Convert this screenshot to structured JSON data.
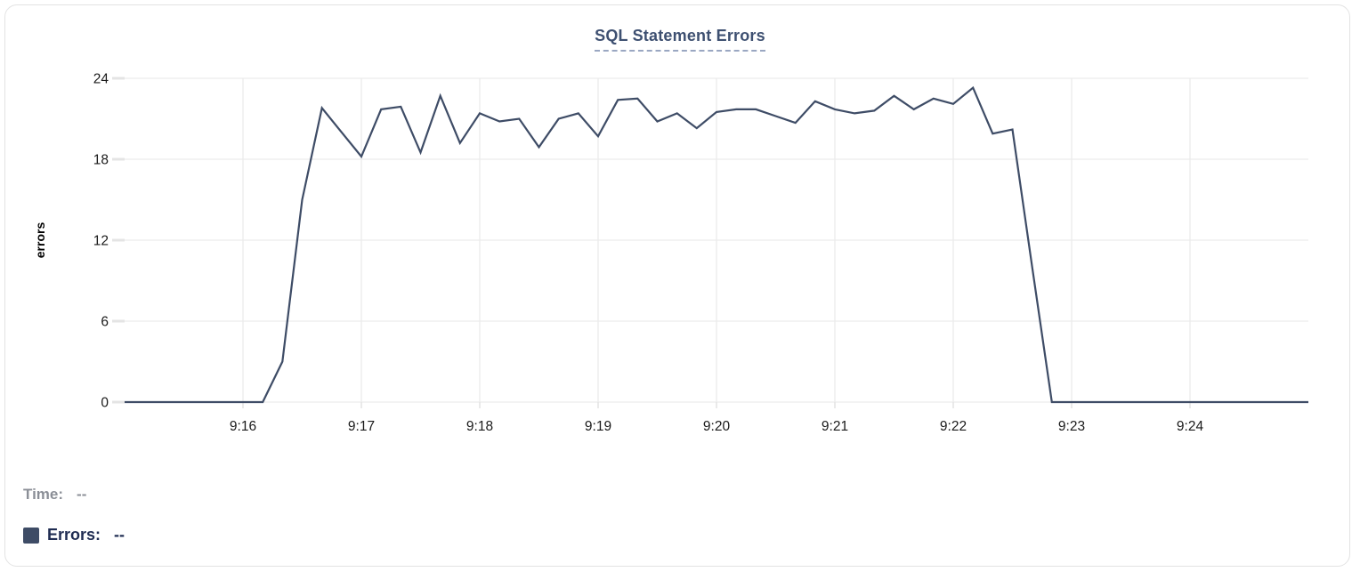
{
  "title_tooltip_style": "dashed-underline",
  "chart_data": {
    "type": "line",
    "title": "SQL Statement Errors",
    "xlabel": "",
    "ylabel": "errors",
    "ylim": [
      0,
      24
    ],
    "y_ticks": [
      0,
      6,
      12,
      18,
      24
    ],
    "x_tick_labels": [
      "9:16",
      "9:17",
      "9:18",
      "9:19",
      "9:20",
      "9:21",
      "9:22",
      "9:23",
      "9:24"
    ],
    "x_range": [
      "9:15:00",
      "9:25:00"
    ],
    "grid": true,
    "legend_position": "bottom-left",
    "series": [
      {
        "name": "Errors",
        "color": "#3e4c66",
        "interval_seconds": 10,
        "times": [
          "9:15:00",
          "9:15:10",
          "9:15:20",
          "9:15:30",
          "9:15:40",
          "9:15:50",
          "9:16:00",
          "9:16:10",
          "9:16:20",
          "9:16:30",
          "9:16:40",
          "9:16:50",
          "9:17:00",
          "9:17:10",
          "9:17:20",
          "9:17:30",
          "9:17:40",
          "9:17:50",
          "9:18:00",
          "9:18:10",
          "9:18:20",
          "9:18:30",
          "9:18:40",
          "9:18:50",
          "9:19:00",
          "9:19:10",
          "9:19:20",
          "9:19:30",
          "9:19:40",
          "9:19:50",
          "9:20:00",
          "9:20:10",
          "9:20:20",
          "9:20:30",
          "9:20:40",
          "9:20:50",
          "9:21:00",
          "9:21:10",
          "9:21:20",
          "9:21:30",
          "9:21:40",
          "9:21:50",
          "9:22:00",
          "9:22:10",
          "9:22:20",
          "9:22:30",
          "9:22:40",
          "9:22:50",
          "9:23:00",
          "9:23:10",
          "9:23:20",
          "9:23:30",
          "9:23:40",
          "9:23:50",
          "9:24:00",
          "9:24:10",
          "9:24:20",
          "9:24:30",
          "9:24:40",
          "9:24:50",
          "9:25:00"
        ],
        "values": [
          0,
          0,
          0,
          0,
          0,
          0,
          0,
          0,
          3,
          15,
          21.8,
          20,
          18.2,
          21.7,
          21.9,
          18.5,
          22.7,
          19.2,
          21.4,
          20.8,
          21,
          18.9,
          21,
          21.4,
          19.7,
          22.4,
          22.5,
          20.8,
          21.4,
          20.3,
          21.5,
          21.7,
          21.7,
          21.2,
          20.7,
          22.3,
          21.7,
          21.4,
          21.6,
          22.7,
          21.7,
          22.5,
          22.1,
          23.3,
          19.9,
          20.2,
          10,
          0,
          0,
          0,
          0,
          0,
          0,
          0,
          0,
          0,
          0,
          0,
          0,
          0,
          0
        ]
      }
    ]
  },
  "legend": {
    "time_label": "Time:",
    "time_value": "--",
    "errors_label": "Errors:",
    "errors_value": "--"
  },
  "colors": {
    "series_line": "#3e4c66",
    "title_text": "#3e5071",
    "title_underline": "#9aa7c2",
    "axis_text": "#1a1a1a",
    "gridline": "#ececec",
    "tick_mark": "#e4e4e4",
    "legend_time_text": "#8b8f97",
    "legend_errors_text": "#1f2c52",
    "card_border": "#e3e3e3"
  }
}
